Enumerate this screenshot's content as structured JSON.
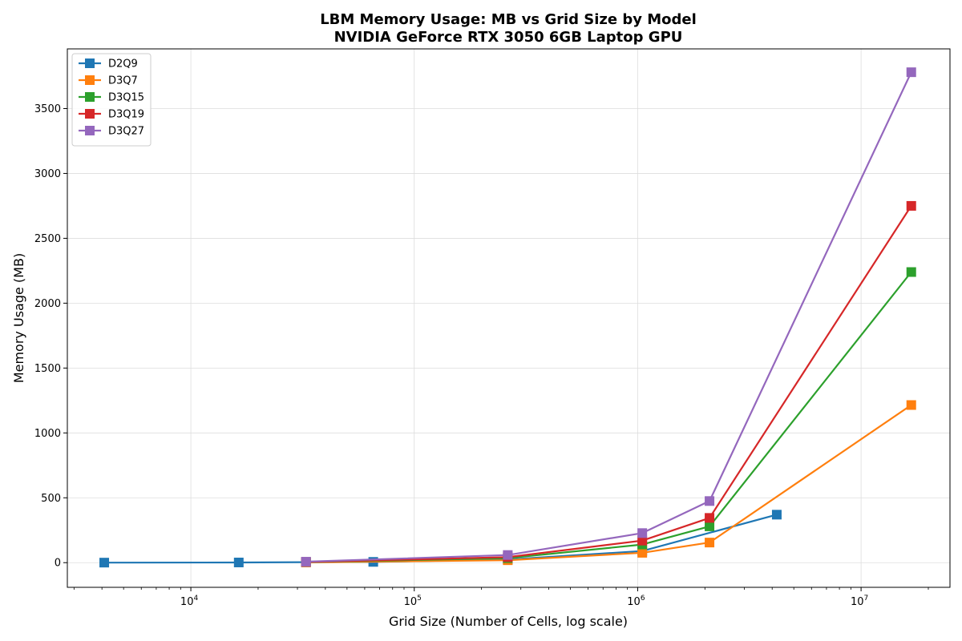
{
  "chart_data": {
    "type": "line",
    "title": "LBM Memory Usage: MB vs Grid Size by Model",
    "subtitle": "NVIDIA GeForce RTX 3050 6GB Laptop GPU",
    "xlabel": "Grid Size (Number of Cells, log scale)",
    "ylabel": "Memory Usage (MB)",
    "xscale": "log",
    "xlim": [
      2800,
      25000000
    ],
    "ylim": [
      -190,
      3960
    ],
    "grid": true,
    "legend_position": "top-left",
    "x_ticks": [
      {
        "value": 10000,
        "base": "10",
        "exp": "4"
      },
      {
        "value": 100000,
        "base": "10",
        "exp": "5"
      },
      {
        "value": 1000000,
        "base": "10",
        "exp": "6"
      },
      {
        "value": 10000000,
        "base": "10",
        "exp": "7"
      }
    ],
    "y_ticks": [
      {
        "value": 0,
        "label": "0"
      },
      {
        "value": 500,
        "label": "500"
      },
      {
        "value": 1000,
        "label": "1000"
      },
      {
        "value": 1500,
        "label": "1500"
      },
      {
        "value": 2000,
        "label": "2000"
      },
      {
        "value": 2500,
        "label": "2500"
      },
      {
        "value": 3000,
        "label": "3000"
      },
      {
        "value": 3500,
        "label": "3500"
      }
    ],
    "series": [
      {
        "name": "D2Q9",
        "color": "#1f77b4",
        "x": [
          4096,
          16384,
          65536,
          262144,
          1048576,
          4194304
        ],
        "y": [
          0.4,
          1.5,
          6,
          24,
          90,
          370
        ]
      },
      {
        "name": "D3Q7",
        "color": "#ff7f0e",
        "x": [
          32768,
          262144,
          1048576,
          2097152,
          16777216
        ],
        "y": [
          2.3,
          19,
          76,
          155,
          1215
        ]
      },
      {
        "name": "D3Q15",
        "color": "#2ca02c",
        "x": [
          32768,
          262144,
          1048576,
          2097152,
          16777216
        ],
        "y": [
          4.4,
          35,
          140,
          280,
          2240
        ]
      },
      {
        "name": "D3Q19",
        "color": "#d62728",
        "x": [
          32768,
          262144,
          1048576,
          2097152,
          16777216
        ],
        "y": [
          5.4,
          43,
          170,
          345,
          2750
        ]
      },
      {
        "name": "D3Q27",
        "color": "#9467bd",
        "x": [
          32768,
          262144,
          1048576,
          2097152,
          16777216
        ],
        "y": [
          7.4,
          59,
          228,
          475,
          3780
        ]
      }
    ]
  }
}
